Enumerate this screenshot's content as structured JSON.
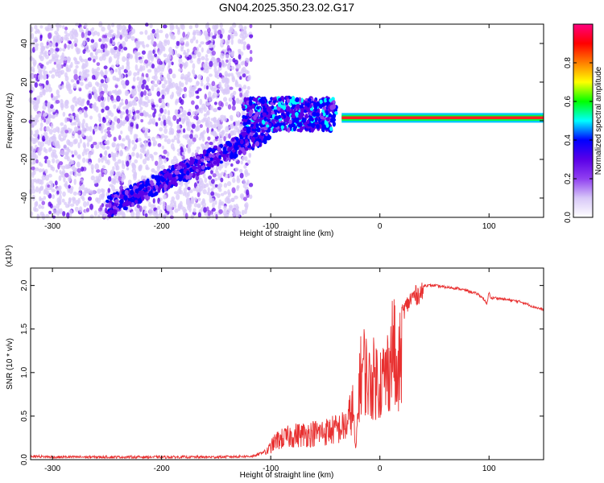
{
  "title": "GN04.2025.350.23.02.G17",
  "chart_data": [
    {
      "type": "heatmap",
      "title": "GN04.2025.350.23.02.G17",
      "xlabel": "Height of straight line (km)",
      "ylabel": "Frequency (Hz)",
      "xlim": [
        -320,
        150
      ],
      "ylim": [
        -50,
        50
      ],
      "xticks": [
        -300,
        -200,
        -100,
        0,
        100
      ],
      "yticks": [
        -40,
        -20,
        0,
        20,
        40
      ],
      "colorbar": {
        "label": "Normalized spectral amplitude",
        "range": [
          0.0,
          1.0
        ],
        "ticks": [
          0.0,
          0.2,
          0.4,
          0.6,
          0.8
        ],
        "colors": [
          "#ffffff",
          "#d8c8f8",
          "#9040f0",
          "#5a00e8",
          "#0000ff",
          "#00ffff",
          "#00ff00",
          "#ffff00",
          "#ff7f00",
          "#ff0000",
          "#ff0080"
        ]
      },
      "features": [
        {
          "name": "oblique trace",
          "x": [
            -250,
            -100
          ],
          "freq_hz": [
            -45,
            -5
          ],
          "peak_amplitude": 0.4
        },
        {
          "name": "broadband cluster",
          "x": [
            -125,
            -40
          ],
          "freq_hz": [
            -5,
            12
          ],
          "peak_amplitude": 0.45
        },
        {
          "name": "steady carrier",
          "x": [
            -35,
            150
          ],
          "freq_hz": [
            1,
            2
          ],
          "peak_amplitude": 1.0
        }
      ]
    },
    {
      "type": "line",
      "xlabel": "Height of straight line (km)",
      "ylabel": "SNR (10 * v/v)",
      "yscale_label": "(x10⁴)",
      "xlim": [
        -320,
        150
      ],
      "ylim": [
        0,
        2.2
      ],
      "xticks": [
        -300,
        -200,
        -100,
        0,
        100
      ],
      "yticks": [
        0.0,
        0.5,
        1.0,
        1.5,
        2.0
      ],
      "series": [
        {
          "name": "SNR",
          "color": "#e83030",
          "x": [
            -320,
            -300,
            -250,
            -200,
            -150,
            -115,
            -105,
            -95,
            -80,
            -70,
            -60,
            -50,
            -45,
            -40,
            -35,
            -30,
            -25,
            -22,
            -19,
            -15,
            -10,
            -5,
            0,
            5,
            10,
            13,
            15,
            20,
            25,
            30,
            35,
            40,
            50,
            60,
            70,
            80,
            90,
            95,
            98,
            100,
            102,
            105,
            110,
            120,
            130,
            140,
            150
          ],
          "y": [
            0.04,
            0.03,
            0.03,
            0.03,
            0.03,
            0.04,
            0.1,
            0.3,
            0.38,
            0.4,
            0.42,
            0.44,
            0.46,
            0.48,
            0.5,
            0.55,
            0.85,
            0.1,
            1.2,
            1.5,
            1.2,
            1.3,
            1.25,
            1.3,
            1.6,
            1.9,
            1.1,
            1.75,
            1.85,
            1.95,
            1.98,
            2.0,
            2.0,
            1.98,
            1.97,
            1.94,
            1.9,
            1.85,
            1.78,
            1.92,
            1.85,
            1.86,
            1.85,
            1.83,
            1.81,
            1.76,
            1.72
          ]
        }
      ]
    }
  ]
}
